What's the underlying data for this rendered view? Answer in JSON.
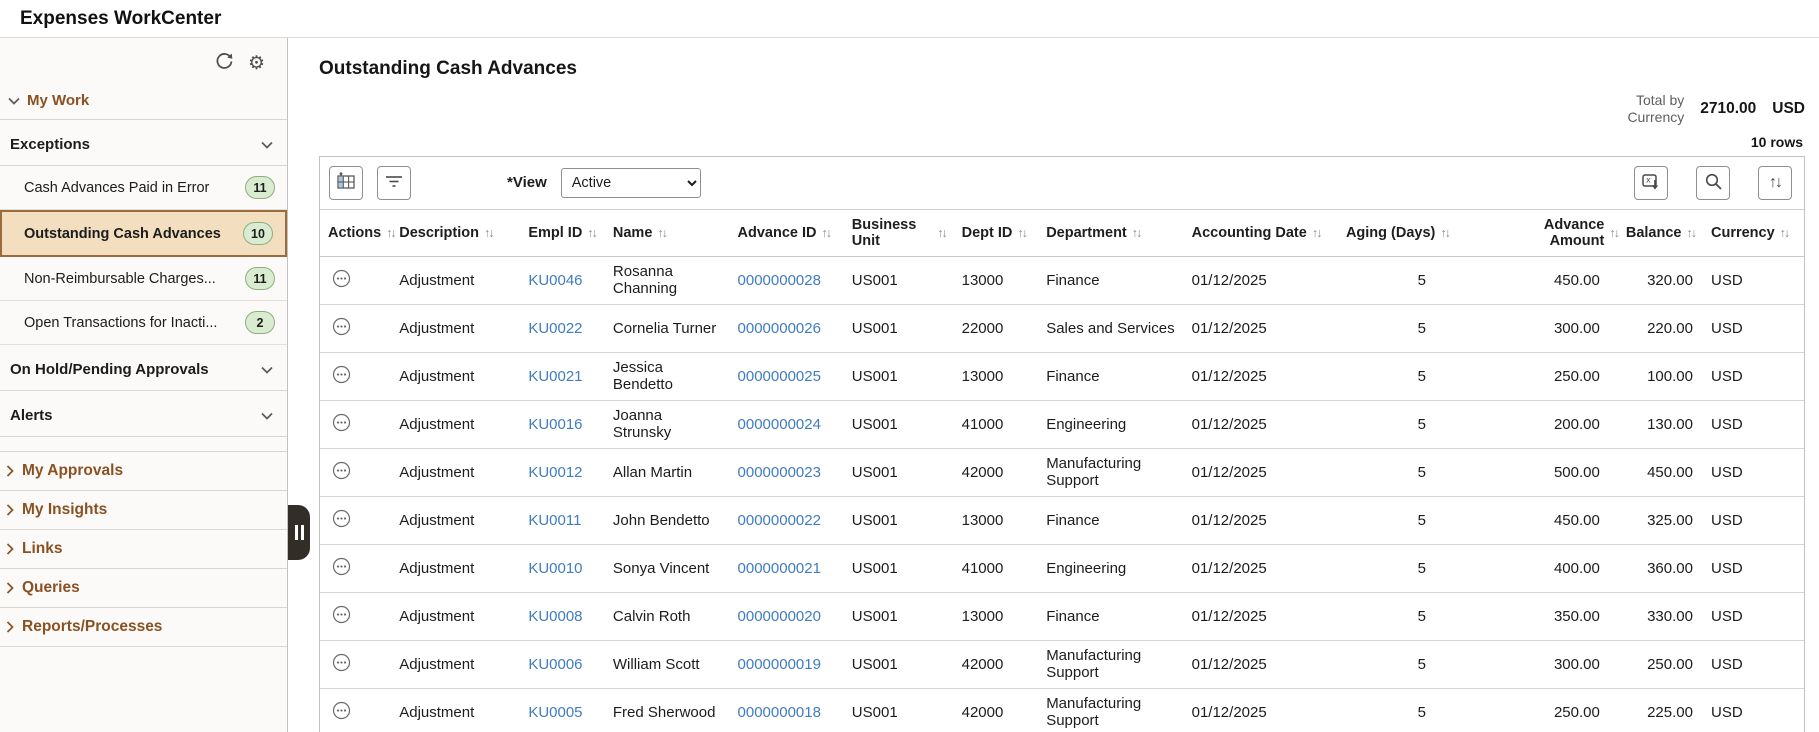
{
  "app": {
    "title": "Expenses WorkCenter"
  },
  "icons": {
    "sort": "↑↓"
  },
  "sidebar": {
    "my_work_label": "My Work",
    "exceptions": {
      "label": "Exceptions",
      "items": [
        {
          "label": "Cash Advances Paid in Error",
          "count": "11",
          "selected": false
        },
        {
          "label": "Outstanding Cash Advances",
          "count": "10",
          "selected": true
        },
        {
          "label": "Non-Reimbursable Charges...",
          "count": "11",
          "selected": false
        },
        {
          "label": "Open Transactions for Inacti...",
          "count": "2",
          "selected": false
        }
      ]
    },
    "on_hold_label": "On Hold/Pending Approvals",
    "alerts_label": "Alerts",
    "collapsed_sections": [
      "My Approvals",
      "My Insights",
      "Links",
      "Queries",
      "Reports/Processes"
    ]
  },
  "main": {
    "title": "Outstanding Cash Advances",
    "total_label": "Total by Currency",
    "total_amount": "2710.00",
    "total_currency": "USD",
    "rows_label": "10 rows",
    "view_label": "*View",
    "view_value": "Active"
  },
  "table": {
    "columns": [
      {
        "key": "actions",
        "label": "Actions"
      },
      {
        "key": "description",
        "label": "Description"
      },
      {
        "key": "empl_id",
        "label": "Empl ID"
      },
      {
        "key": "name",
        "label": "Name"
      },
      {
        "key": "advance_id",
        "label": "Advance ID"
      },
      {
        "key": "business_unit",
        "label": "Business Unit"
      },
      {
        "key": "dept_id",
        "label": "Dept ID"
      },
      {
        "key": "department",
        "label": "Department"
      },
      {
        "key": "accounting_date",
        "label": "Accounting Date"
      },
      {
        "key": "aging_days",
        "label": "Aging (Days)"
      },
      {
        "key": "advance_amount",
        "label": "Advance Amount"
      },
      {
        "key": "balance",
        "label": "Balance"
      },
      {
        "key": "currency",
        "label": "Currency"
      }
    ],
    "rows": [
      {
        "description": "Adjustment",
        "empl_id": "KU0046",
        "name": "Rosanna Channing",
        "advance_id": "0000000028",
        "business_unit": "US001",
        "dept_id": "13000",
        "department": "Finance",
        "accounting_date": "01/12/2025",
        "aging_days": "5",
        "advance_amount": "450.00",
        "balance": "320.00",
        "currency": "USD"
      },
      {
        "description": "Adjustment",
        "empl_id": "KU0022",
        "name": "Cornelia Turner",
        "advance_id": "0000000026",
        "business_unit": "US001",
        "dept_id": "22000",
        "department": "Sales and Services",
        "accounting_date": "01/12/2025",
        "aging_days": "5",
        "advance_amount": "300.00",
        "balance": "220.00",
        "currency": "USD"
      },
      {
        "description": "Adjustment",
        "empl_id": "KU0021",
        "name": "Jessica Bendetto",
        "advance_id": "0000000025",
        "business_unit": "US001",
        "dept_id": "13000",
        "department": "Finance",
        "accounting_date": "01/12/2025",
        "aging_days": "5",
        "advance_amount": "250.00",
        "balance": "100.00",
        "currency": "USD"
      },
      {
        "description": "Adjustment",
        "empl_id": "KU0016",
        "name": "Joanna Strunsky",
        "advance_id": "0000000024",
        "business_unit": "US001",
        "dept_id": "41000",
        "department": "Engineering",
        "accounting_date": "01/12/2025",
        "aging_days": "5",
        "advance_amount": "200.00",
        "balance": "130.00",
        "currency": "USD"
      },
      {
        "description": "Adjustment",
        "empl_id": "KU0012",
        "name": "Allan Martin",
        "advance_id": "0000000023",
        "business_unit": "US001",
        "dept_id": "42000",
        "department": "Manufacturing Support",
        "accounting_date": "01/12/2025",
        "aging_days": "5",
        "advance_amount": "500.00",
        "balance": "450.00",
        "currency": "USD"
      },
      {
        "description": "Adjustment",
        "empl_id": "KU0011",
        "name": "John Bendetto",
        "advance_id": "0000000022",
        "business_unit": "US001",
        "dept_id": "13000",
        "department": "Finance",
        "accounting_date": "01/12/2025",
        "aging_days": "5",
        "advance_amount": "450.00",
        "balance": "325.00",
        "currency": "USD"
      },
      {
        "description": "Adjustment",
        "empl_id": "KU0010",
        "name": "Sonya Vincent",
        "advance_id": "0000000021",
        "business_unit": "US001",
        "dept_id": "41000",
        "department": "Engineering",
        "accounting_date": "01/12/2025",
        "aging_days": "5",
        "advance_amount": "400.00",
        "balance": "360.00",
        "currency": "USD"
      },
      {
        "description": "Adjustment",
        "empl_id": "KU0008",
        "name": "Calvin Roth",
        "advance_id": "0000000020",
        "business_unit": "US001",
        "dept_id": "13000",
        "department": "Finance",
        "accounting_date": "01/12/2025",
        "aging_days": "5",
        "advance_amount": "350.00",
        "balance": "330.00",
        "currency": "USD"
      },
      {
        "description": "Adjustment",
        "empl_id": "KU0006",
        "name": "William Scott",
        "advance_id": "0000000019",
        "business_unit": "US001",
        "dept_id": "42000",
        "department": "Manufacturing Support",
        "accounting_date": "01/12/2025",
        "aging_days": "5",
        "advance_amount": "300.00",
        "balance": "250.00",
        "currency": "USD"
      },
      {
        "description": "Adjustment",
        "empl_id": "KU0005",
        "name": "Fred Sherwood",
        "advance_id": "0000000018",
        "business_unit": "US001",
        "dept_id": "42000",
        "department": "Manufacturing Support",
        "accounting_date": "01/12/2025",
        "aging_days": "5",
        "advance_amount": "250.00",
        "balance": "225.00",
        "currency": "USD"
      }
    ]
  }
}
